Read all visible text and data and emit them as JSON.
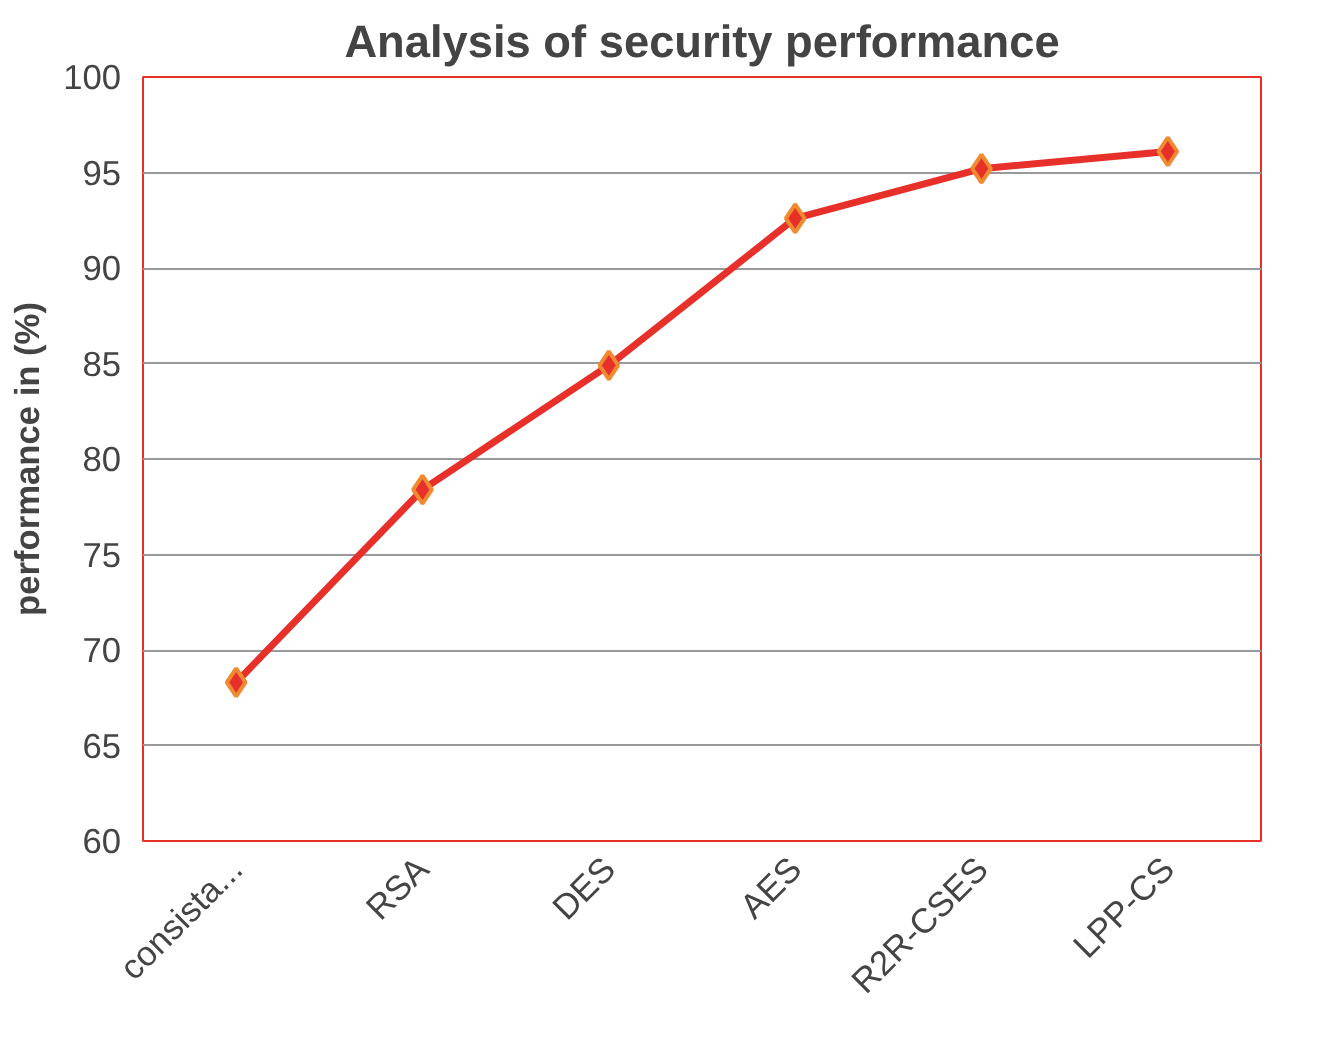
{
  "chart_data": {
    "type": "line",
    "title": "Analysis of security performance",
    "ylabel": "performance in (%)",
    "categories": [
      "consista...",
      "RSA",
      "DES",
      "AES",
      "R2R-CSES",
      "LPP-CS"
    ],
    "series": [
      {
        "color": "#e8302a",
        "values": [
          68.3,
          78.4,
          84.9,
          92.6,
          95.2,
          96.1
        ]
      }
    ],
    "ylim": [
      60,
      100
    ],
    "yticks": [
      60,
      65,
      70,
      75,
      80,
      85,
      90,
      95,
      100
    ],
    "grid": "y",
    "marker": "diamond",
    "line_style": "solid"
  }
}
